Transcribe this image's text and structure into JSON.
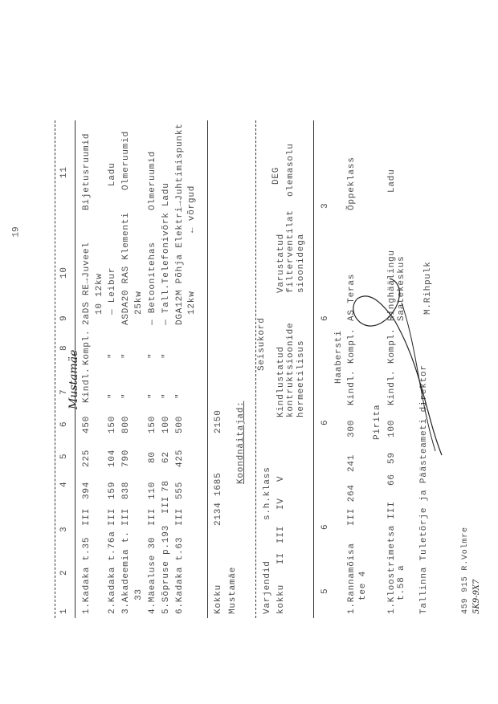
{
  "page_number": "19",
  "handwritten_note": "Mustamäe",
  "header": [
    "1",
    "2",
    "3",
    "4",
    "5",
    "6",
    "7",
    "8",
    "9",
    "10",
    "11"
  ],
  "rows": [
    {
      "name": "1.Kadaka t.35",
      "klass": "III",
      "c4": "394",
      "c5": "225",
      "c6": "450",
      "c7": "Kindl.",
      "c8": "Kompl.",
      "c10": "2aDS RE→Juveel",
      "c10b": "10 12kw",
      "c11": "Bijetusruumid"
    },
    {
      "name": "2.Kadaka t.76a",
      "klass": "III",
      "c4": "159",
      "c5": "104",
      "c6": "150",
      "c7": "\"",
      "c8": "\"",
      "c10": "— Leibur",
      "c11": "Ladu"
    },
    {
      "name": "3.Akadeemia t.",
      "name2": "33",
      "klass": "III",
      "c4": "838",
      "c5": "790",
      "c6": "800",
      "c7": "\"",
      "c8": "\"",
      "c10": "ASDA20 RAS Klementi",
      "c10b": "25kw",
      "c11": "Olmeruumid"
    },
    {
      "name": "4.Mäealuse 30",
      "klass": "III",
      "c4": "110",
      "c5": "80",
      "c6": "150",
      "c7": "\"",
      "c8": "\"",
      "c10": "— Betoonitehas",
      "c11": "Olmeruumid"
    },
    {
      "name": "5.Sõpruse p.193",
      "klass": "III",
      "c4": "78",
      "c5": "62",
      "c6": "100",
      "c7": "\"",
      "c8": "\"",
      "c10": "— Tall.Telefonivõrk Ladu"
    },
    {
      "name": "6.Kadaka t.63",
      "klass": "III",
      "c4": "555",
      "c5": "425",
      "c6": "500",
      "c7": "\"",
      "c8": "\"",
      "c10": "DGA12M Põhja Elektri→Juhtimispunkt",
      "c10b": "12kw",
      "c11": "← võrgud"
    }
  ],
  "total": {
    "label": "Kokku",
    "c4c5": "2134 1685",
    "c6": "2150"
  },
  "district": "Mustamäe",
  "summary_title": "Koondnäitajad:",
  "summary_header": {
    "varjendid": "Varjendid",
    "kokku": "kokku",
    "shklass": "s.h.klass",
    "ii": "II",
    "iii": "III",
    "iv": "IV",
    "v": "V",
    "seisukord": "Seisukord",
    "kindl1": "Kindlustatud",
    "kindl2": "kontruktsioonide",
    "kindl3": "hermeetilisus",
    "var1": "Varustatud",
    "var2": "filterventilat",
    "var3": "sioonidega",
    "deg1": "DEG",
    "deg2": "olemasolu"
  },
  "summary_values": [
    "5",
    "6",
    "6",
    "6",
    "3"
  ],
  "districts": [
    {
      "name": "Haabersti",
      "row": {
        "name": "1.Rannamõisa",
        "name2": "tee 4",
        "klass": "III 264",
        "c5": "241",
        "c6": "300",
        "c7": "Kindl.",
        "c8": "Kompl.",
        "c10": "AS Teras",
        "c11": "Õppeklass"
      }
    },
    {
      "name": "Pirita",
      "row": {
        "name": "1.Kloostrimetsa III",
        "name2": "t.58 a",
        "klass": "66",
        "c5": "59",
        "c6": "100",
        "c7": "Kindl.",
        "c8": "Kompl.",
        "c10": "Ringhäälingu",
        "c10b": "Saatekeskus",
        "c11": "Ladu"
      }
    }
  ],
  "signature_title": "Tallinna Tuletõrje ja Päästeameti direktor",
  "signatory": "M.Rihpulk",
  "author": "459 915 R.Volmre",
  "author_note": "5K9-9X7"
}
